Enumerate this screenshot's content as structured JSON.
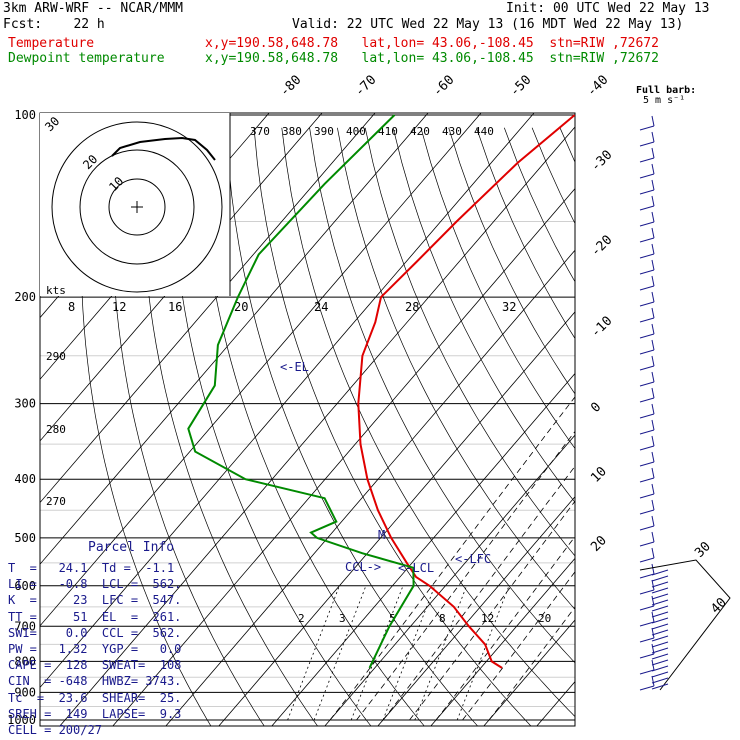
{
  "header": {
    "line1_left": "3km ARW-WRF -- NCAR/MMM",
    "line1_right": "Init: 00 UTC Wed 22 May 13",
    "line2_left": "Fcst:    22 h",
    "line2_right": "Valid: 22 UTC Wed 22 May 13 (16 MDT Wed 22 May 13)",
    "line3_label": "Temperature",
    "line3_info": "x,y=190.58,648.78   lat,lon= 43.06,-108.45  stn=RIW ,72672",
    "line4_label": "Dewpoint temperature",
    "line4_info": "x,y=190.58,648.78   lat,lon= 43.06,-108.45  stn=RIW ,72672"
  },
  "colors": {
    "temperature": "#e00000",
    "dewpoint": "#008a00",
    "wind": "#1a1a8c",
    "grid": "#000000"
  },
  "chart_data": {
    "type": "line",
    "title": "",
    "yscale": "log-pressure",
    "ylim": [
      1000,
      100
    ],
    "pressure_labels": [
      "100",
      "200",
      "300",
      "400",
      "500",
      "600",
      "700",
      "800",
      "900",
      "1000"
    ],
    "isotherm_labels": [
      "-80",
      "-70",
      "-60",
      "-50",
      "-40",
      "-30",
      "-20",
      "-10",
      "0",
      "10",
      "20",
      "30",
      "40"
    ],
    "theta_labels": [
      "370",
      "380",
      "390",
      "400",
      "410",
      "420",
      "430",
      "440"
    ],
    "low_theta_labels": [
      "290",
      "280",
      "270"
    ],
    "hodograph_speed_labels": [
      "8",
      "12",
      "16",
      "20",
      "24",
      "28",
      "32"
    ],
    "mixing_ratio_labels": [
      "2",
      "3",
      "5",
      "8",
      "12",
      "20"
    ],
    "hodograph_rings": [
      "10",
      "20",
      "30"
    ],
    "hodograph_units": "kts",
    "barb_legend": [
      "Full barb:",
      "5 m s⁻¹"
    ],
    "annotations": {
      "el": "<-EL",
      "lfc": "<-LFC",
      "lcl": "<-LCL",
      "ccl": "CCL->",
      "m": "M"
    },
    "series": [
      {
        "name": "Temperature",
        "color": "#e00000",
        "points": [
          [
            100,
            -52
          ],
          [
            120,
            -55
          ],
          [
            150,
            -57
          ],
          [
            175,
            -58
          ],
          [
            200,
            -59
          ],
          [
            220,
            -56
          ],
          [
            250,
            -53
          ],
          [
            300,
            -46
          ],
          [
            350,
            -39
          ],
          [
            400,
            -32
          ],
          [
            450,
            -25
          ],
          [
            500,
            -18
          ],
          [
            550,
            -11
          ],
          [
            580,
            -7
          ],
          [
            600,
            -3
          ],
          [
            650,
            5
          ],
          [
            700,
            11
          ],
          [
            750,
            17
          ],
          [
            800,
            21
          ],
          [
            820,
            24
          ]
        ]
      },
      {
        "name": "Dewpoint temperature",
        "color": "#008a00",
        "points": [
          [
            100,
            -86
          ],
          [
            130,
            -88
          ],
          [
            170,
            -89
          ],
          [
            200,
            -86
          ],
          [
            240,
            -82
          ],
          [
            280,
            -76
          ],
          [
            330,
            -74
          ],
          [
            360,
            -69
          ],
          [
            400,
            -55
          ],
          [
            430,
            -37
          ],
          [
            470,
            -31
          ],
          [
            490,
            -34
          ],
          [
            500,
            -32
          ],
          [
            530,
            -21
          ],
          [
            560,
            -9
          ],
          [
            600,
            -6
          ],
          [
            700,
            -4
          ],
          [
            820,
            -1
          ]
        ]
      }
    ]
  },
  "parcel": {
    "title": "Parcel Info",
    "rows": [
      "T  =   24.1  Td =  -1.1",
      "LI =   -0.8  LCL =  562.",
      "K  =     23  LFC =  547.",
      "TT =     51  EL  =  261.",
      "SWI=    0.0  CCL =  562.",
      "PW =   1.32  YGP =   0.0",
      "CAPE =  128  SWEAT=  108",
      "CIN  = -648  HWBZ= 3743.",
      "Tc  =  23.6  SHEAR=  25.",
      "SREH =  149  LAPSE=  9.3",
      "CELL = 200/27"
    ]
  }
}
